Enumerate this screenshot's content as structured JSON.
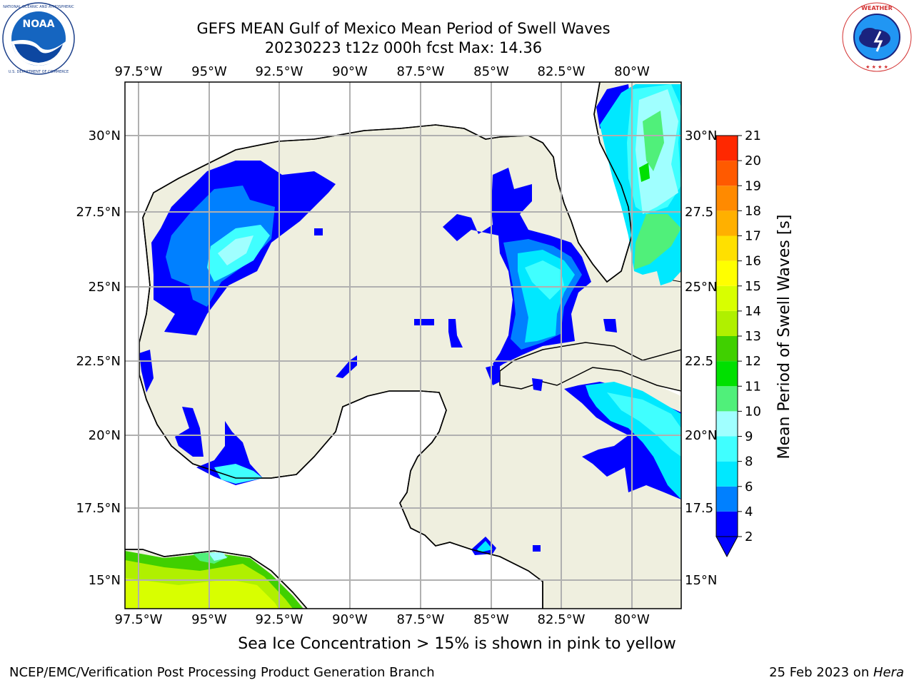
{
  "title": {
    "line1": "GEFS MEAN Gulf of Mexico Mean Period of Swell Waves",
    "line2": "20230223 t12z 000h fcst   Max: 14.36"
  },
  "logos": {
    "left": {
      "text": "NOAA",
      "ring_text": "NATIONAL OCEANIC AND ATMOSPHERIC ADMINISTRATION · U.S. DEPARTMENT OF COMMERCE"
    },
    "right": {
      "ring_text": "NATIONAL WEATHER SERVICE"
    }
  },
  "map": {
    "lon_labels": [
      "97.5°W",
      "95°W",
      "92.5°W",
      "90°W",
      "87.5°W",
      "85°W",
      "82.5°W",
      "80°W"
    ],
    "lat_labels": [
      "30°N",
      "27.5°N",
      "25°N",
      "22.5°N",
      "20°N",
      "17.5°N",
      "15°N"
    ],
    "right_lat_labels": [
      "30°N",
      "27.5",
      "25°N",
      "22.5",
      "20°N",
      "17.5",
      "15°N"
    ],
    "colors": {
      "land": "#efefdf",
      "ocean": "#ffffff",
      "coast": "#000000",
      "grid": "#b0b0b0"
    }
  },
  "colorbar": {
    "label": "Mean Period of Swell Waves [s]",
    "ticks": [
      "2",
      "4",
      "6",
      "8",
      "9",
      "10",
      "11",
      "12",
      "13",
      "14",
      "15",
      "16",
      "17",
      "18",
      "19",
      "20",
      "21"
    ],
    "colors": [
      "#0000ff",
      "#0080ff",
      "#00e8ff",
      "#40ffff",
      "#a0ffff",
      "#50f07a",
      "#00e000",
      "#40d000",
      "#b0f000",
      "#d8ff00",
      "#ffff00",
      "#ffe000",
      "#ffb000",
      "#ff8a00",
      "#ff5a00",
      "#ff2800",
      "#ff0000"
    ],
    "underflow_color": "#0000ff"
  },
  "caption": "Sea Ice Concentration > 15% is shown in pink to yellow",
  "footer": {
    "left": "NCEP/EMC/Verification Post Processing Product Generation Branch",
    "right_prefix": "25 Feb 2023 on ",
    "right_host": "Hera"
  }
}
